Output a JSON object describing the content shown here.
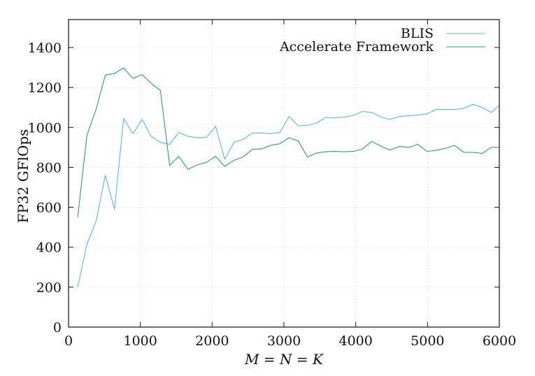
{
  "chart_data": {
    "type": "line",
    "xlabel": "M = N = K",
    "ylabel": "FP32 GFlOps",
    "xlim": [
      0,
      6000
    ],
    "ylim": [
      0,
      1540
    ],
    "xticks": [
      0,
      1000,
      2000,
      3000,
      4000,
      5000,
      6000
    ],
    "yticks": [
      0,
      200,
      400,
      600,
      800,
      1000,
      1200,
      1400
    ],
    "grid": true,
    "legend_position": "top-right",
    "series": [
      {
        "name": "BLIS",
        "color": "#5bb8dc",
        "x": [
          128,
          256,
          384,
          512,
          640,
          768,
          896,
          1024,
          1152,
          1280,
          1408,
          1536,
          1664,
          1792,
          1920,
          2048,
          2176,
          2304,
          2432,
          2560,
          2688,
          2816,
          2944,
          3072,
          3200,
          3328,
          3456,
          3584,
          3712,
          3840,
          3968,
          4096,
          4224,
          4352,
          4480,
          4608,
          4736,
          4864,
          4992,
          5120,
          5248,
          5376,
          5504,
          5632,
          5760,
          5888,
          6000
        ],
        "y": [
          200,
          415,
          530,
          760,
          590,
          1045,
          968,
          1040,
          955,
          925,
          915,
          975,
          955,
          948,
          950,
          1005,
          840,
          925,
          940,
          972,
          972,
          968,
          975,
          1055,
          1008,
          1010,
          1022,
          1050,
          1048,
          1052,
          1060,
          1080,
          1075,
          1052,
          1040,
          1055,
          1058,
          1062,
          1068,
          1090,
          1090,
          1090,
          1095,
          1115,
          1100,
          1075,
          1110
        ]
      },
      {
        "name": "Accelerate Framework",
        "color": "#2e9e6e",
        "x": [
          128,
          256,
          384,
          512,
          640,
          768,
          896,
          1024,
          1152,
          1280,
          1408,
          1536,
          1664,
          1792,
          1920,
          2048,
          2176,
          2304,
          2432,
          2560,
          2688,
          2816,
          2944,
          3072,
          3200,
          3328,
          3456,
          3584,
          3712,
          3840,
          3968,
          4096,
          4224,
          4352,
          4480,
          4608,
          4736,
          4864,
          4992,
          5120,
          5248,
          5376,
          5504,
          5632,
          5760,
          5888,
          6000
        ],
        "y": [
          550,
          960,
          1090,
          1262,
          1270,
          1298,
          1245,
          1265,
          1220,
          1185,
          810,
          855,
          790,
          812,
          825,
          855,
          805,
          835,
          852,
          890,
          892,
          910,
          918,
          948,
          932,
          852,
          872,
          878,
          880,
          878,
          880,
          892,
          930,
          905,
          887,
          905,
          900,
          915,
          880,
          885,
          895,
          910,
          875,
          875,
          870,
          900,
          900
        ]
      }
    ]
  }
}
